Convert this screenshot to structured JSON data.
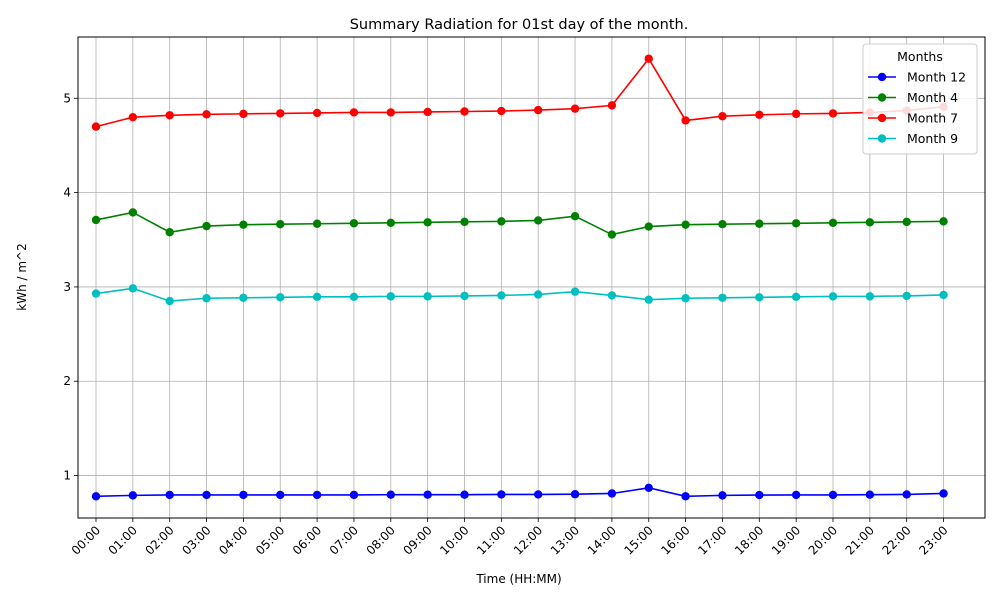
{
  "chart_data": {
    "type": "line",
    "title": "Summary Radiation for 01st day of the month.",
    "xlabel": "Time (HH:MM)",
    "ylabel": "kWh / m^2",
    "ylim": [
      0.55,
      5.65
    ],
    "yticks": [
      1,
      2,
      3,
      4,
      5
    ],
    "grid": true,
    "legend": {
      "title": "Months",
      "placement": "top-right"
    },
    "categories": [
      "00:00",
      "01:00",
      "02:00",
      "03:00",
      "04:00",
      "05:00",
      "06:00",
      "07:00",
      "08:00",
      "09:00",
      "10:00",
      "11:00",
      "12:00",
      "13:00",
      "14:00",
      "15:00",
      "16:00",
      "17:00",
      "18:00",
      "19:00",
      "20:00",
      "21:00",
      "22:00",
      "23:00"
    ],
    "series": [
      {
        "name": "Month 12",
        "color": "#0000ff",
        "values": [
          0.78,
          0.79,
          0.795,
          0.795,
          0.795,
          0.795,
          0.795,
          0.795,
          0.797,
          0.797,
          0.797,
          0.8,
          0.8,
          0.802,
          0.81,
          0.87,
          0.78,
          0.79,
          0.793,
          0.795,
          0.795,
          0.797,
          0.8,
          0.81
        ]
      },
      {
        "name": "Month 4",
        "color": "#008000",
        "values": [
          3.71,
          3.79,
          3.58,
          3.645,
          3.66,
          3.665,
          3.67,
          3.675,
          3.68,
          3.685,
          3.69,
          3.695,
          3.705,
          3.75,
          3.555,
          3.64,
          3.66,
          3.665,
          3.67,
          3.675,
          3.68,
          3.685,
          3.69,
          3.695
        ]
      },
      {
        "name": "Month 7",
        "color": "#ff0000",
        "values": [
          4.7,
          4.8,
          4.82,
          4.83,
          4.835,
          4.84,
          4.845,
          4.85,
          4.85,
          4.855,
          4.86,
          4.865,
          4.875,
          4.89,
          4.925,
          5.42,
          4.765,
          4.81,
          4.825,
          4.835,
          4.84,
          4.85,
          4.87,
          4.91
        ]
      },
      {
        "name": "Month 9",
        "color": "#00bfbf",
        "values": [
          2.93,
          2.985,
          2.85,
          2.88,
          2.885,
          2.89,
          2.895,
          2.895,
          2.9,
          2.9,
          2.905,
          2.91,
          2.92,
          2.95,
          2.91,
          2.865,
          2.88,
          2.885,
          2.89,
          2.895,
          2.9,
          2.9,
          2.905,
          2.915
        ]
      }
    ]
  }
}
